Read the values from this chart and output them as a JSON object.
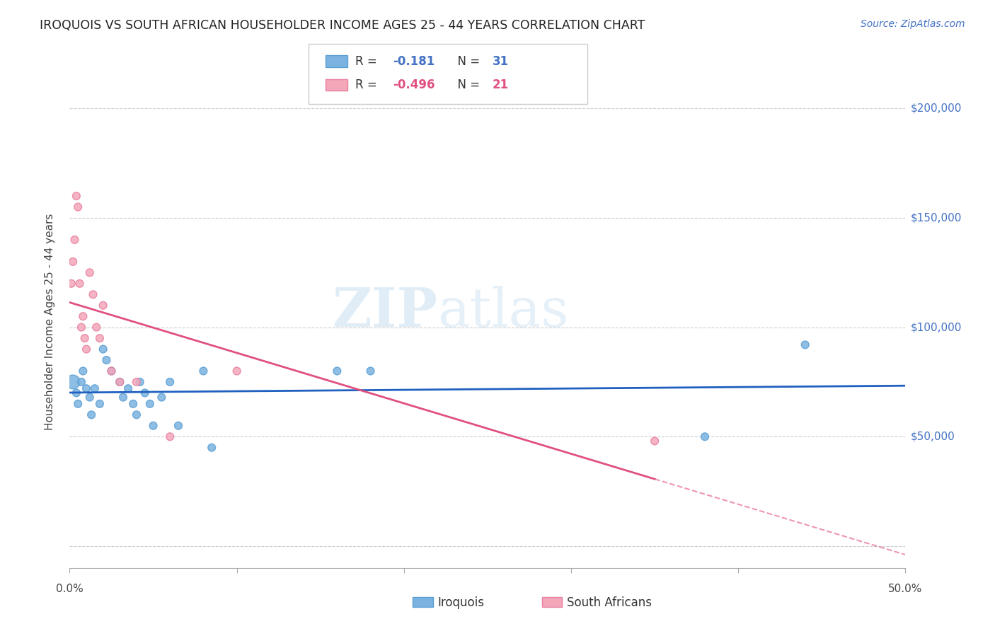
{
  "title": "IROQUOIS VS SOUTH AFRICAN HOUSEHOLDER INCOME AGES 25 - 44 YEARS CORRELATION CHART",
  "source": "Source: ZipAtlas.com",
  "ylabel": "Householder Income Ages 25 - 44 years",
  "ytick_labels": [
    "",
    "$50,000",
    "$100,000",
    "$150,000",
    "$200,000"
  ],
  "ytick_values": [
    0,
    50000,
    100000,
    150000,
    200000
  ],
  "xlim": [
    0.0,
    0.5
  ],
  "ylim": [
    -10000,
    215000
  ],
  "iroquois_color": "#7bb3e0",
  "iroquois_edge_color": "#5a9fd4",
  "sa_color": "#f4a7b9",
  "sa_edge_color": "#e87fa0",
  "trendline_blue": "#2060c0",
  "trendline_pink": "#e05080",
  "watermark_zip": "ZIP",
  "watermark_atlas": "atlas",
  "iroquois_x": [
    0.002,
    0.004,
    0.005,
    0.007,
    0.008,
    0.01,
    0.012,
    0.013,
    0.015,
    0.018,
    0.02,
    0.022,
    0.025,
    0.03,
    0.032,
    0.035,
    0.038,
    0.04,
    0.042,
    0.045,
    0.048,
    0.05,
    0.055,
    0.06,
    0.065,
    0.08,
    0.085,
    0.16,
    0.18,
    0.38,
    0.44
  ],
  "iroquois_y": [
    75000,
    70000,
    65000,
    75000,
    80000,
    72000,
    68000,
    60000,
    72000,
    65000,
    90000,
    85000,
    80000,
    75000,
    68000,
    72000,
    65000,
    60000,
    75000,
    70000,
    65000,
    55000,
    68000,
    75000,
    55000,
    80000,
    45000,
    80000,
    80000,
    50000,
    92000
  ],
  "iroquois_sizes": [
    200,
    60,
    60,
    60,
    60,
    60,
    60,
    60,
    60,
    60,
    60,
    60,
    60,
    60,
    60,
    60,
    60,
    60,
    60,
    60,
    60,
    60,
    60,
    60,
    60,
    60,
    60,
    60,
    60,
    60,
    60
  ],
  "sa_x": [
    0.001,
    0.002,
    0.003,
    0.004,
    0.005,
    0.006,
    0.007,
    0.008,
    0.009,
    0.01,
    0.012,
    0.014,
    0.016,
    0.018,
    0.02,
    0.025,
    0.03,
    0.04,
    0.06,
    0.1,
    0.35
  ],
  "sa_y": [
    120000,
    130000,
    140000,
    160000,
    155000,
    120000,
    100000,
    105000,
    95000,
    90000,
    125000,
    115000,
    100000,
    95000,
    110000,
    80000,
    75000,
    75000,
    50000,
    80000,
    48000
  ],
  "sa_sizes": [
    60,
    60,
    60,
    60,
    60,
    60,
    60,
    60,
    60,
    60,
    60,
    60,
    60,
    60,
    60,
    60,
    60,
    60,
    60,
    60,
    60
  ]
}
